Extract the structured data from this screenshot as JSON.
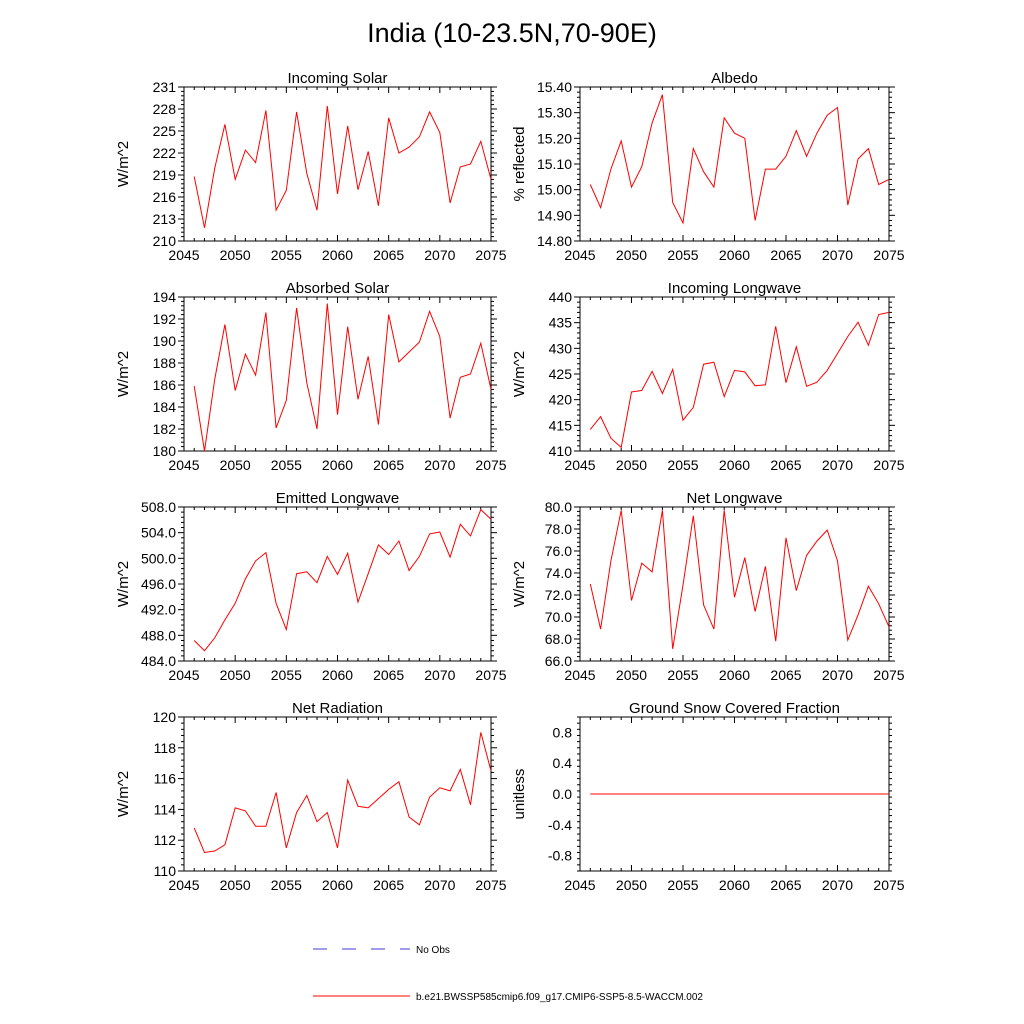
{
  "figure": {
    "title": "India (10-23.5N,70-90E)",
    "colors": {
      "model": "#ff0000",
      "obs": "#3b3bd6",
      "axes": "#000000"
    }
  },
  "legend": {
    "obs_label": "No Obs",
    "model_label": "b.e21.BWSSP585cmip6.f09_g17.CMIP6-SSP5-8.5-WACCM.002"
  },
  "chart_data": [
    {
      "type": "line",
      "title": "Incoming Solar",
      "xlabel": "",
      "ylabel": "W/m^2",
      "xlim": [
        2045,
        2075
      ],
      "ylim": [
        210,
        231
      ],
      "xticks": [
        2045,
        2050,
        2055,
        2060,
        2065,
        2070,
        2075
      ],
      "yticks": [
        210,
        213,
        216,
        219,
        222,
        225,
        228,
        231
      ],
      "ytick_labels": [
        "210",
        "213",
        "216",
        "219",
        "222",
        "225",
        "228",
        "231"
      ],
      "x": [
        2046,
        2047,
        2048,
        2049,
        2050,
        2051,
        2052,
        2053,
        2054,
        2055,
        2056,
        2057,
        2058,
        2059,
        2060,
        2061,
        2062,
        2063,
        2064,
        2065,
        2066,
        2067,
        2068,
        2069,
        2070,
        2071,
        2072,
        2073,
        2074,
        2075
      ],
      "series": [
        {
          "name": "b.e21.BWSSP585cmip6.f09_g17.CMIP6-SSP5-8.5-WACCM.002",
          "values": [
            218.8,
            211.8,
            219.9,
            225.9,
            218.4,
            222.4,
            220.7,
            227.8,
            214.2,
            216.9,
            227.6,
            219.2,
            214.2,
            228.4,
            216.4,
            225.7,
            217.0,
            222.2,
            214.8,
            226.8,
            222.0,
            222.8,
            224.2,
            227.6,
            224.8,
            215.2,
            220.1,
            220.5,
            223.6,
            218.4
          ]
        }
      ]
    },
    {
      "type": "line",
      "title": "Albedo",
      "xlabel": "",
      "ylabel": "% reflected",
      "xlim": [
        2045,
        2075
      ],
      "ylim": [
        14.8,
        15.4
      ],
      "xticks": [
        2045,
        2050,
        2055,
        2060,
        2065,
        2070,
        2075
      ],
      "yticks": [
        14.8,
        14.9,
        15.0,
        15.1,
        15.2,
        15.3,
        15.4
      ],
      "ytick_labels": [
        "14.80",
        "14.90",
        "15.00",
        "15.10",
        "15.20",
        "15.30",
        "15.40"
      ],
      "x": [
        2046,
        2047,
        2048,
        2049,
        2050,
        2051,
        2052,
        2053,
        2054,
        2055,
        2056,
        2057,
        2058,
        2059,
        2060,
        2061,
        2062,
        2063,
        2064,
        2065,
        2066,
        2067,
        2068,
        2069,
        2070,
        2071,
        2072,
        2073,
        2074,
        2075
      ],
      "series": [
        {
          "name": "b.e21.BWSSP585cmip6.f09_g17.CMIP6-SSP5-8.5-WACCM.002",
          "values": [
            15.02,
            14.93,
            15.08,
            15.19,
            15.01,
            15.09,
            15.26,
            15.37,
            14.95,
            14.87,
            15.16,
            15.07,
            15.01,
            15.28,
            15.22,
            15.2,
            14.88,
            15.08,
            15.08,
            15.13,
            15.23,
            15.13,
            15.22,
            15.29,
            15.32,
            14.94,
            15.12,
            15.16,
            15.02,
            15.04
          ]
        }
      ]
    },
    {
      "type": "line",
      "title": "Absorbed Solar",
      "xlabel": "",
      "ylabel": "W/m^2",
      "xlim": [
        2045,
        2075
      ],
      "ylim": [
        180,
        194
      ],
      "xticks": [
        2045,
        2050,
        2055,
        2060,
        2065,
        2070,
        2075
      ],
      "yticks": [
        180,
        182,
        184,
        186,
        188,
        190,
        192,
        194
      ],
      "ytick_labels": [
        "180",
        "182",
        "184",
        "186",
        "188",
        "190",
        "192",
        "194"
      ],
      "x": [
        2046,
        2047,
        2048,
        2049,
        2050,
        2051,
        2052,
        2053,
        2054,
        2055,
        2056,
        2057,
        2058,
        2059,
        2060,
        2061,
        2062,
        2063,
        2064,
        2065,
        2066,
        2067,
        2068,
        2069,
        2070,
        2071,
        2072,
        2073,
        2074,
        2075
      ],
      "series": [
        {
          "name": "b.e21.BWSSP585cmip6.f09_g17.CMIP6-SSP5-8.5-WACCM.002",
          "values": [
            185.9,
            180.0,
            186.5,
            191.5,
            185.5,
            188.8,
            186.9,
            192.6,
            182.1,
            184.6,
            193.0,
            186.2,
            182.0,
            193.4,
            183.3,
            191.3,
            184.7,
            188.6,
            182.4,
            192.4,
            188.1,
            189.0,
            189.9,
            192.7,
            190.4,
            183.0,
            186.7,
            187.0,
            189.8,
            185.6
          ]
        }
      ]
    },
    {
      "type": "line",
      "title": "Incoming Longwave",
      "xlabel": "",
      "ylabel": "W/m^2",
      "xlim": [
        2045,
        2075
      ],
      "ylim": [
        410,
        440
      ],
      "xticks": [
        2045,
        2050,
        2055,
        2060,
        2065,
        2070,
        2075
      ],
      "yticks": [
        410,
        415,
        420,
        425,
        430,
        435,
        440
      ],
      "ytick_labels": [
        "410",
        "415",
        "420",
        "425",
        "430",
        "435",
        "440"
      ],
      "x": [
        2046,
        2047,
        2048,
        2049,
        2050,
        2051,
        2052,
        2053,
        2054,
        2055,
        2056,
        2057,
        2058,
        2059,
        2060,
        2061,
        2062,
        2063,
        2064,
        2065,
        2066,
        2067,
        2068,
        2069,
        2070,
        2071,
        2072,
        2073,
        2074,
        2075
      ],
      "series": [
        {
          "name": "b.e21.BWSSP585cmip6.f09_g17.CMIP6-SSP5-8.5-WACCM.002",
          "values": [
            414.2,
            416.7,
            412.5,
            410.7,
            421.5,
            421.8,
            425.5,
            421.2,
            425.9,
            416.0,
            418.5,
            426.9,
            427.3,
            420.6,
            425.7,
            425.4,
            422.7,
            422.9,
            434.3,
            423.3,
            430.3,
            422.6,
            423.4,
            425.7,
            429.0,
            432.3,
            435.1,
            430.6,
            436.6,
            437.0
          ]
        }
      ]
    },
    {
      "type": "line",
      "title": "Emitted Longwave",
      "xlabel": "",
      "ylabel": "W/m^2",
      "xlim": [
        2045,
        2075
      ],
      "ylim": [
        484,
        508
      ],
      "xticks": [
        2045,
        2050,
        2055,
        2060,
        2065,
        2070,
        2075
      ],
      "yticks": [
        484,
        488,
        492,
        496,
        500,
        504,
        508
      ],
      "ytick_labels": [
        "484.0",
        "488.0",
        "492.0",
        "496.0",
        "500.0",
        "504.0",
        "508.0"
      ],
      "x": [
        2046,
        2047,
        2048,
        2049,
        2050,
        2051,
        2052,
        2053,
        2054,
        2055,
        2056,
        2057,
        2058,
        2059,
        2060,
        2061,
        2062,
        2063,
        2064,
        2065,
        2066,
        2067,
        2068,
        2069,
        2070,
        2071,
        2072,
        2073,
        2074,
        2075
      ],
      "series": [
        {
          "name": "b.e21.BWSSP585cmip6.f09_g17.CMIP6-SSP5-8.5-WACCM.002",
          "values": [
            487.2,
            485.6,
            487.6,
            490.4,
            493.0,
            496.8,
            499.6,
            500.9,
            493.0,
            488.9,
            497.6,
            497.9,
            496.2,
            500.3,
            497.5,
            500.8,
            493.2,
            497.6,
            502.1,
            500.6,
            502.7,
            498.1,
            500.3,
            503.8,
            504.1,
            500.2,
            505.3,
            503.5,
            507.6,
            506.1
          ]
        }
      ]
    },
    {
      "type": "line",
      "title": "Net Longwave",
      "xlabel": "",
      "ylabel": "W/m^2",
      "xlim": [
        2045,
        2075
      ],
      "ylim": [
        66,
        80
      ],
      "xticks": [
        2045,
        2050,
        2055,
        2060,
        2065,
        2070,
        2075
      ],
      "yticks": [
        66,
        68,
        70,
        72,
        74,
        76,
        78,
        80
      ],
      "ytick_labels": [
        "66.0",
        "68.0",
        "70.0",
        "72.0",
        "74.0",
        "76.0",
        "78.0",
        "80.0"
      ],
      "x": [
        2046,
        2047,
        2048,
        2049,
        2050,
        2051,
        2052,
        2053,
        2054,
        2055,
        2056,
        2057,
        2058,
        2059,
        2060,
        2061,
        2062,
        2063,
        2064,
        2065,
        2066,
        2067,
        2068,
        2069,
        2070,
        2071,
        2072,
        2073,
        2074,
        2075
      ],
      "series": [
        {
          "name": "b.e21.BWSSP585cmip6.f09_g17.CMIP6-SSP5-8.5-WACCM.002",
          "values": [
            73.0,
            68.9,
            75.1,
            79.7,
            71.5,
            74.9,
            74.1,
            79.7,
            67.1,
            72.9,
            79.2,
            71.1,
            68.9,
            79.7,
            71.8,
            75.4,
            70.5,
            74.6,
            67.8,
            77.2,
            72.4,
            75.6,
            76.9,
            77.9,
            75.1,
            67.9,
            70.2,
            72.8,
            71.2,
            69.1
          ]
        }
      ]
    },
    {
      "type": "line",
      "title": "Net Radiation",
      "xlabel": "",
      "ylabel": "W/m^2",
      "xlim": [
        2045,
        2075
      ],
      "ylim": [
        110,
        120
      ],
      "xticks": [
        2045,
        2050,
        2055,
        2060,
        2065,
        2070,
        2075
      ],
      "yticks": [
        110,
        112,
        114,
        116,
        118,
        120
      ],
      "ytick_labels": [
        "110",
        "112",
        "114",
        "116",
        "118",
        "120"
      ],
      "x": [
        2046,
        2047,
        2048,
        2049,
        2050,
        2051,
        2052,
        2053,
        2054,
        2055,
        2056,
        2057,
        2058,
        2059,
        2060,
        2061,
        2062,
        2063,
        2064,
        2065,
        2066,
        2067,
        2068,
        2069,
        2070,
        2071,
        2072,
        2073,
        2074,
        2075
      ],
      "series": [
        {
          "name": "b.e21.BWSSP585cmip6.f09_g17.CMIP6-SSP5-8.5-WACCM.002",
          "values": [
            112.8,
            111.2,
            111.3,
            111.7,
            114.1,
            113.9,
            112.9,
            112.9,
            115.1,
            111.5,
            113.8,
            114.9,
            113.2,
            113.8,
            111.5,
            115.9,
            114.2,
            114.1,
            114.7,
            115.3,
            115.8,
            113.5,
            113.0,
            114.8,
            115.4,
            115.2,
            116.6,
            114.3,
            119.0,
            116.5
          ]
        }
      ]
    },
    {
      "type": "line",
      "title": "Ground Snow Covered Fraction",
      "xlabel": "",
      "ylabel": "unitless",
      "xlim": [
        2045,
        2075
      ],
      "ylim": [
        -1,
        1
      ],
      "xticks": [
        2045,
        2050,
        2055,
        2060,
        2065,
        2070,
        2075
      ],
      "yticks": [
        -0.8,
        -0.4,
        0.0,
        0.4,
        0.8
      ],
      "ytick_labels": [
        "-0.8",
        "-0.4",
        "0.0",
        "0.4",
        "0.8"
      ],
      "x": [
        2046,
        2047,
        2048,
        2049,
        2050,
        2051,
        2052,
        2053,
        2054,
        2055,
        2056,
        2057,
        2058,
        2059,
        2060,
        2061,
        2062,
        2063,
        2064,
        2065,
        2066,
        2067,
        2068,
        2069,
        2070,
        2071,
        2072,
        2073,
        2074,
        2075
      ],
      "series": [
        {
          "name": "b.e21.BWSSP585cmip6.f09_g17.CMIP6-SSP5-8.5-WACCM.002",
          "values": [
            0,
            0,
            0,
            0,
            0,
            0,
            0,
            0,
            0,
            0,
            0,
            0,
            0,
            0,
            0,
            0,
            0,
            0,
            0,
            0,
            0,
            0,
            0,
            0,
            0,
            0,
            0,
            0,
            0,
            0
          ]
        }
      ]
    }
  ]
}
